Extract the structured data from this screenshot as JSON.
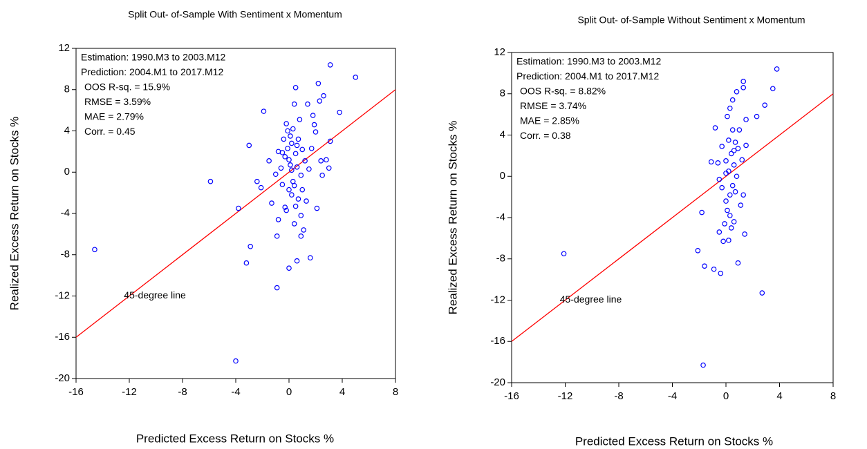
{
  "chart_data": [
    {
      "type": "scatter",
      "title": "Split Out- of-Sample With Sentiment x Momentum",
      "x_label": "Predicted Excess Return on Stocks %",
      "y_label": "Realized Excess Return on Stocks %",
      "xlim": [
        -16,
        8
      ],
      "ylim": [
        -20,
        12
      ],
      "xticks": [
        -16,
        -12,
        -8,
        -4,
        0,
        4,
        8
      ],
      "yticks": [
        -20,
        -16,
        -12,
        -8,
        -4,
        0,
        4,
        8,
        12
      ],
      "color": "#0000ff",
      "line_color": "#ff0000",
      "annotations": [
        {
          "text": "Estimation: 1990.M3 to 2003.M12",
          "color": "#000000"
        },
        {
          "text": "Prediction: 2004.M1 to 2017.M12",
          "color": "#000000"
        },
        {
          "text": "OOS R-sq. = 15.9%",
          "color": "#ff0000"
        },
        {
          "text": "RMSE = 3.59%",
          "color": "#ff0000"
        },
        {
          "text": "MAE = 2.79%",
          "color": "#ff0000"
        },
        {
          "text": "Corr. = 0.45",
          "color": "#ff0000"
        }
      ],
      "line_label": "45-degree line",
      "x": [
        -14.6,
        -5.9,
        -4,
        -3.8,
        -3.2,
        -2.9,
        -3,
        -2.4,
        -2.1,
        -1.9,
        -1.5,
        -1.3,
        -1,
        -0.9,
        -0.9,
        -0.8,
        -0.8,
        -0.6,
        -0.5,
        -0.4,
        -0.3,
        -0.3,
        -0.2,
        -0.2,
        -0.1,
        -0.1,
        0,
        0,
        0,
        0.1,
        0.1,
        0.2,
        0.2,
        0.3,
        0.3,
        0.4,
        0.4,
        0.4,
        0.5,
        0.5,
        0.5,
        0.6,
        0.6,
        0.7,
        0.7,
        0.8,
        0.9,
        0.9,
        1,
        1,
        1.1,
        1.2,
        1.3,
        1.4,
        1.5,
        1.6,
        1.7,
        1.8,
        2,
        2.1,
        2.2,
        2.3,
        2.4,
        2.5,
        2.6,
        2.8,
        3,
        3.1,
        3.1,
        3.8,
        5,
        1.9,
        0.2,
        -0.5,
        0.6,
        0.9
      ],
      "y": [
        -7.5,
        -0.9,
        -18.3,
        -3.5,
        -8.8,
        -7.2,
        2.6,
        -0.9,
        -1.5,
        5.9,
        1.1,
        -3,
        -0.2,
        -6.2,
        -11.2,
        -4.6,
        2,
        0.4,
        1.9,
        3.2,
        1.5,
        -3.4,
        -3.7,
        4.7,
        4,
        2.3,
        -9.3,
        -1.7,
        1.2,
        3.5,
        0.7,
        2.8,
        -2.2,
        -0.9,
        4.2,
        6.6,
        -1.3,
        -5,
        8.2,
        -3.3,
        1.8,
        -8.6,
        0.5,
        3.2,
        -2.6,
        5.1,
        -6.2,
        -0.3,
        2.2,
        -1.7,
        -5.6,
        1.1,
        -2.8,
        6.6,
        0.3,
        -8.3,
        2.3,
        5.5,
        3.9,
        -3.5,
        8.6,
        6.9,
        1.1,
        -0.3,
        7.4,
        1.2,
        0.4,
        3,
        10.4,
        5.8,
        9.2,
        4.6,
        0.2,
        -1.2,
        2.6,
        -4.2
      ]
    },
    {
      "type": "scatter",
      "title": "Split Out- of-Sample Without Sentiment x Momentum",
      "x_label": "Predicted Excess Return on Stocks %",
      "y_label": "Realized Excess Return on Stocks %",
      "xlim": [
        -16,
        8
      ],
      "ylim": [
        -20,
        12
      ],
      "xticks": [
        -16,
        -12,
        -8,
        -4,
        0,
        4,
        8
      ],
      "yticks": [
        -20,
        -16,
        -12,
        -8,
        -4,
        0,
        4,
        8,
        12
      ],
      "color": "#0000ff",
      "line_color": "#ff0000",
      "annotations": [
        {
          "text": "Estimation: 1990.M3 to 2003.M12",
          "color": "#000000"
        },
        {
          "text": "Prediction: 2004.M1 to 2017.M12",
          "color": "#000000"
        },
        {
          "text": "OOS R-sq. = 8.82%",
          "color": "#ff0000"
        },
        {
          "text": "RMSE = 3.74%",
          "color": "#ff0000"
        },
        {
          "text": "MAE = 2.85%",
          "color": "#ff0000"
        },
        {
          "text": "Corr. = 0.38",
          "color": "#ff0000"
        }
      ],
      "line_label": "45-degree line",
      "x": [
        -12.1,
        -1.7,
        2.7,
        -2.1,
        -1.6,
        -0.9,
        -0.4,
        -1.8,
        -0.8,
        -0.5,
        -0.5,
        -0.3,
        -0.2,
        -0.1,
        0,
        0,
        0.1,
        0.1,
        0.2,
        0.2,
        0.3,
        0.3,
        0.4,
        0.4,
        0.5,
        0.5,
        0.6,
        0.6,
        0.7,
        0.7,
        0.8,
        0.8,
        0.9,
        0.9,
        1,
        1.1,
        1.2,
        1.3,
        1.3,
        1.4,
        1.5,
        1.5,
        2.3,
        2.9,
        3.5,
        3.8,
        0.2,
        -0.6,
        0.6,
        0.3,
        -1.1,
        1.3,
        0,
        0.5,
        -0.3
      ],
      "y": [
        -7.5,
        -18.3,
        -11.3,
        -7.2,
        -8.7,
        -9,
        -9.4,
        -3.5,
        4.7,
        -0.3,
        -5.4,
        2.9,
        -6.3,
        -4.6,
        1.5,
        -2.4,
        5.8,
        -3.3,
        -6.2,
        3.5,
        6.6,
        -1.8,
        2.2,
        -5,
        4.5,
        -0.9,
        -4.4,
        1.1,
        3.3,
        -1.5,
        8.2,
        0,
        -8.4,
        2.7,
        4.5,
        -2.8,
        1.6,
        9.2,
        -1.8,
        -5.6,
        3,
        5.5,
        5.8,
        6.9,
        8.5,
        10.4,
        0.5,
        1.3,
        2.5,
        -3.8,
        1.4,
        8.6,
        0.3,
        7.4,
        -1.1
      ]
    }
  ]
}
